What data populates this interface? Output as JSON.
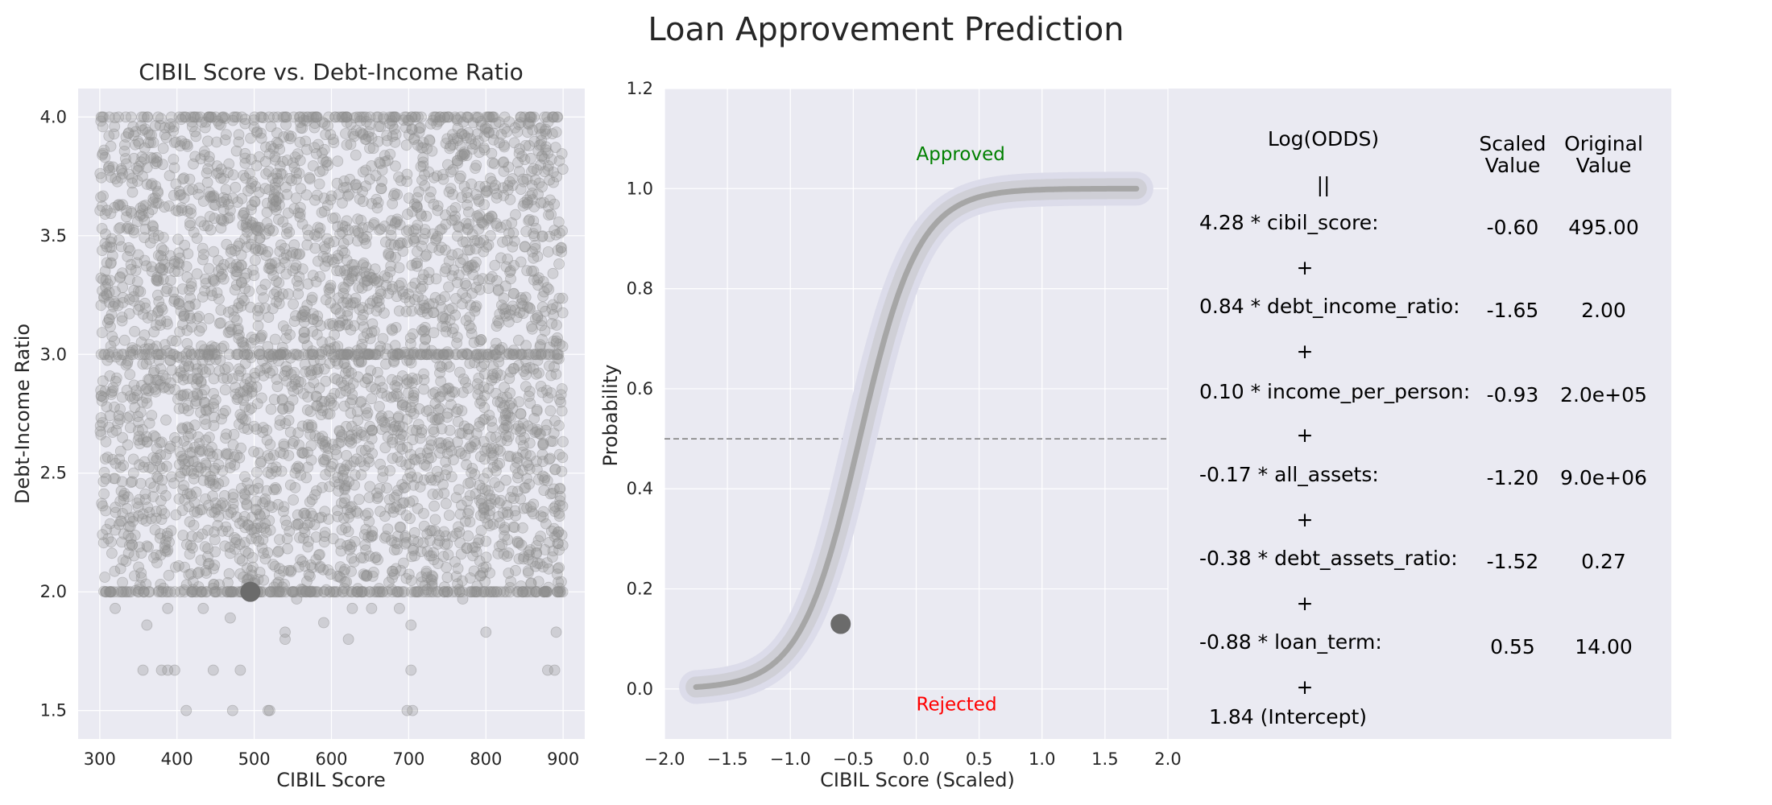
{
  "figure_title": "Loan Approvement Prediction",
  "chart_data": [
    {
      "type": "scatter",
      "title": "CIBIL Score vs. Debt-Income Ratio",
      "xlabel": "CIBIL Score",
      "ylabel": "Debt-Income Ratio",
      "xlim": [
        272,
        928
      ],
      "ylim": [
        1.38,
        4.12
      ],
      "xticks": [
        300,
        400,
        500,
        600,
        700,
        800,
        900
      ],
      "yticks": [
        1.5,
        2.0,
        2.5,
        3.0,
        3.5,
        4.0
      ],
      "xtick_labels": [
        "300",
        "400",
        "500",
        "600",
        "700",
        "800",
        "900"
      ],
      "ytick_labels": [
        "1.5",
        "2.0",
        "2.5",
        "3.0",
        "3.5",
        "4.0"
      ],
      "grid": true,
      "point_color": "#8f8f8f",
      "background": "#eaeaf2",
      "dense_region": {
        "x_range": [
          300,
          900
        ],
        "y_range": [
          2.0,
          4.0
        ],
        "approx_points": 3800
      },
      "sparse_points": [
        {
          "x": 320,
          "y": 1.93
        },
        {
          "x": 361,
          "y": 1.86
        },
        {
          "x": 388,
          "y": 1.93
        },
        {
          "x": 434,
          "y": 1.93
        },
        {
          "x": 469,
          "y": 1.89
        },
        {
          "x": 540,
          "y": 1.83
        },
        {
          "x": 540,
          "y": 1.8
        },
        {
          "x": 590,
          "y": 1.87
        },
        {
          "x": 622,
          "y": 1.8
        },
        {
          "x": 627,
          "y": 1.93
        },
        {
          "x": 652,
          "y": 1.93
        },
        {
          "x": 688,
          "y": 1.93
        },
        {
          "x": 703,
          "y": 1.86
        },
        {
          "x": 800,
          "y": 1.83
        },
        {
          "x": 891,
          "y": 1.83
        },
        {
          "x": 356,
          "y": 1.67
        },
        {
          "x": 380,
          "y": 1.67
        },
        {
          "x": 388,
          "y": 1.67
        },
        {
          "x": 397,
          "y": 1.67
        },
        {
          "x": 447,
          "y": 1.67
        },
        {
          "x": 482,
          "y": 1.67
        },
        {
          "x": 703,
          "y": 1.67
        },
        {
          "x": 880,
          "y": 1.67
        },
        {
          "x": 889,
          "y": 1.67
        },
        {
          "x": 412,
          "y": 1.5
        },
        {
          "x": 472,
          "y": 1.5
        },
        {
          "x": 518,
          "y": 1.5
        },
        {
          "x": 520,
          "y": 1.5
        },
        {
          "x": 698,
          "y": 1.5
        },
        {
          "x": 705,
          "y": 1.5
        },
        {
          "x": 555,
          "y": 1.97
        },
        {
          "x": 770,
          "y": 1.97
        }
      ],
      "highlight_point": {
        "x": 495,
        "y": 2.0,
        "color": "#6b6b6b"
      }
    },
    {
      "type": "line",
      "xlabel": "CIBIL Score (Scaled)",
      "ylabel": "Probability",
      "xlim": [
        -2.0,
        2.0
      ],
      "ylim": [
        -0.1,
        1.2
      ],
      "xticks": [
        -2.0,
        -1.5,
        -1.0,
        -0.5,
        0.0,
        0.5,
        1.0,
        1.5,
        2.0
      ],
      "yticks": [
        0.0,
        0.2,
        0.4,
        0.6,
        0.8,
        1.0,
        1.2
      ],
      "xtick_labels": [
        "−2.0",
        "−1.5",
        "−1.0",
        "−0.5",
        "0.0",
        "0.5",
        "1.0",
        "1.5",
        "2.0"
      ],
      "ytick_labels": [
        "0.0",
        "0.2",
        "0.4",
        "0.6",
        "0.8",
        "1.0",
        "1.2"
      ],
      "grid": true,
      "background": "#eaeaf2",
      "curve": {
        "x_start": -1.75,
        "x_end": 1.75,
        "k": 4.28,
        "x0": -0.45
      },
      "threshold": 0.5,
      "highlight_point": {
        "x": -0.6,
        "y": 0.13,
        "color": "#6b6b6b"
      },
      "annotations": [
        {
          "text": "Approved",
          "x": 0.0,
          "y": 1.07,
          "color": "#008000"
        },
        {
          "text": "Rejected",
          "x": 0.0,
          "y": -0.03,
          "color": "#ff0000"
        }
      ]
    }
  ],
  "equation_panel": {
    "header_log_odds": "Log(ODDS)",
    "equals_sign": "||",
    "header_scaled": [
      "Scaled",
      "Value"
    ],
    "header_original": [
      "Original",
      "Value"
    ],
    "plus_sign": "+",
    "terms": [
      {
        "label": "4.28 * cibil_score:",
        "scaled": "-0.60",
        "original": "495.00"
      },
      {
        "label": "0.84 * debt_income_ratio:",
        "scaled": "-1.65",
        "original": "2.00"
      },
      {
        "label": "0.10 * income_per_person:",
        "scaled": "-0.93",
        "original": "2.0e+05"
      },
      {
        "label": "-0.17 * all_assets:",
        "scaled": "-1.20",
        "original": "9.0e+06"
      },
      {
        "label": "-0.38 * debt_assets_ratio:",
        "scaled": "-1.52",
        "original": "0.27"
      },
      {
        "label": "-0.88 * loan_term:",
        "scaled": "0.55",
        "original": "14.00"
      }
    ],
    "intercept": "1.84 (Intercept)"
  }
}
